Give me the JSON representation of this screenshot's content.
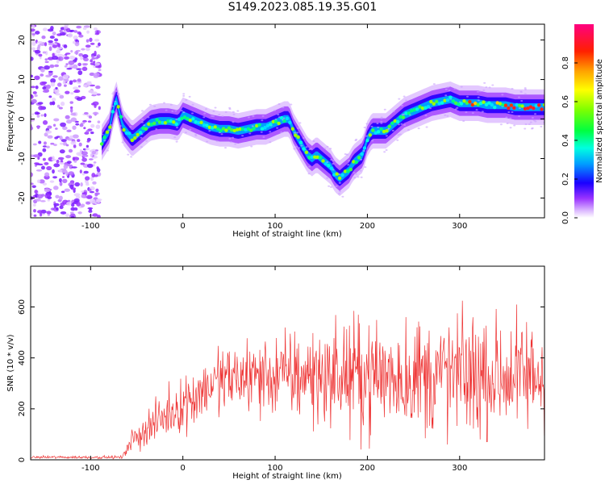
{
  "title": "S149.2023.085.19.35.G01",
  "chart_data": [
    {
      "type": "heatmap",
      "xlabel": "Height of straight line (km)",
      "ylabel": "Frequency (Hz)",
      "xlim": [
        -165,
        392
      ],
      "ylim": [
        -25,
        24
      ],
      "xticks": [
        -100,
        0,
        100,
        200,
        300
      ],
      "yticks": [
        -20,
        -10,
        0,
        10,
        20
      ],
      "colorbar": {
        "label": "Normalized spectral amplitude",
        "range": [
          0,
          1
        ],
        "ticks": [
          0.0,
          0.2,
          0.4,
          0.6,
          0.8
        ]
      },
      "noise_region_x": [
        -165,
        -90
      ],
      "ridge": {
        "x": [
          -88,
          -80,
          -75,
          -72,
          -65,
          -55,
          -45,
          -35,
          -25,
          -15,
          -5,
          0,
          10,
          20,
          30,
          40,
          50,
          60,
          70,
          80,
          90,
          100,
          110,
          115,
          120,
          125,
          130,
          135,
          140,
          145,
          150,
          155,
          160,
          165,
          170,
          175,
          180,
          185,
          190,
          195,
          200,
          205,
          210,
          220,
          230,
          240,
          250,
          260,
          270,
          280,
          290,
          300,
          310,
          320,
          330,
          340,
          350,
          360,
          370,
          380,
          392
        ],
        "y": [
          -6,
          -3,
          3,
          5,
          -2,
          -5,
          -3,
          -1,
          -0.5,
          -0.5,
          -1,
          1,
          0,
          -1,
          -2,
          -2.5,
          -2.5,
          -3,
          -2.5,
          -2,
          -2,
          -1,
          0,
          0,
          -3,
          -5,
          -7,
          -9,
          -10,
          -9,
          -10,
          -11,
          -12,
          -14,
          -15,
          -14,
          -13,
          -11,
          -10,
          -9,
          -5,
          -3,
          -3,
          -3,
          -1,
          1,
          2,
          3,
          4,
          4.5,
          5,
          4,
          4,
          4,
          3.5,
          3.5,
          3.5,
          3,
          3,
          3,
          3
        ]
      }
    },
    {
      "type": "line",
      "xlabel": "Height of straight line (km)",
      "ylabel": "SNR (10 * v/v)",
      "xlim": [
        -165,
        392
      ],
      "ylim": [
        0,
        760
      ],
      "xticks": [
        -100,
        0,
        100,
        200,
        300
      ],
      "yticks": [
        0,
        200,
        400,
        600
      ],
      "color": "#ee3333",
      "envelope": {
        "x": [
          -165,
          -100,
          -65,
          -60,
          -40,
          -20,
          0,
          20,
          40,
          60,
          80,
          100,
          140,
          200,
          250,
          300,
          350,
          392
        ],
        "y": [
          10,
          10,
          10,
          60,
          120,
          170,
          220,
          270,
          310,
          320,
          330,
          330,
          330,
          330,
          330,
          330,
          330,
          330
        ]
      },
      "spread": {
        "x": [
          -165,
          -100,
          -65,
          -60,
          -20,
          0,
          40,
          100,
          200,
          300,
          392
        ],
        "y": [
          5,
          5,
          5,
          40,
          80,
          100,
          120,
          150,
          200,
          220,
          200
        ]
      }
    }
  ]
}
